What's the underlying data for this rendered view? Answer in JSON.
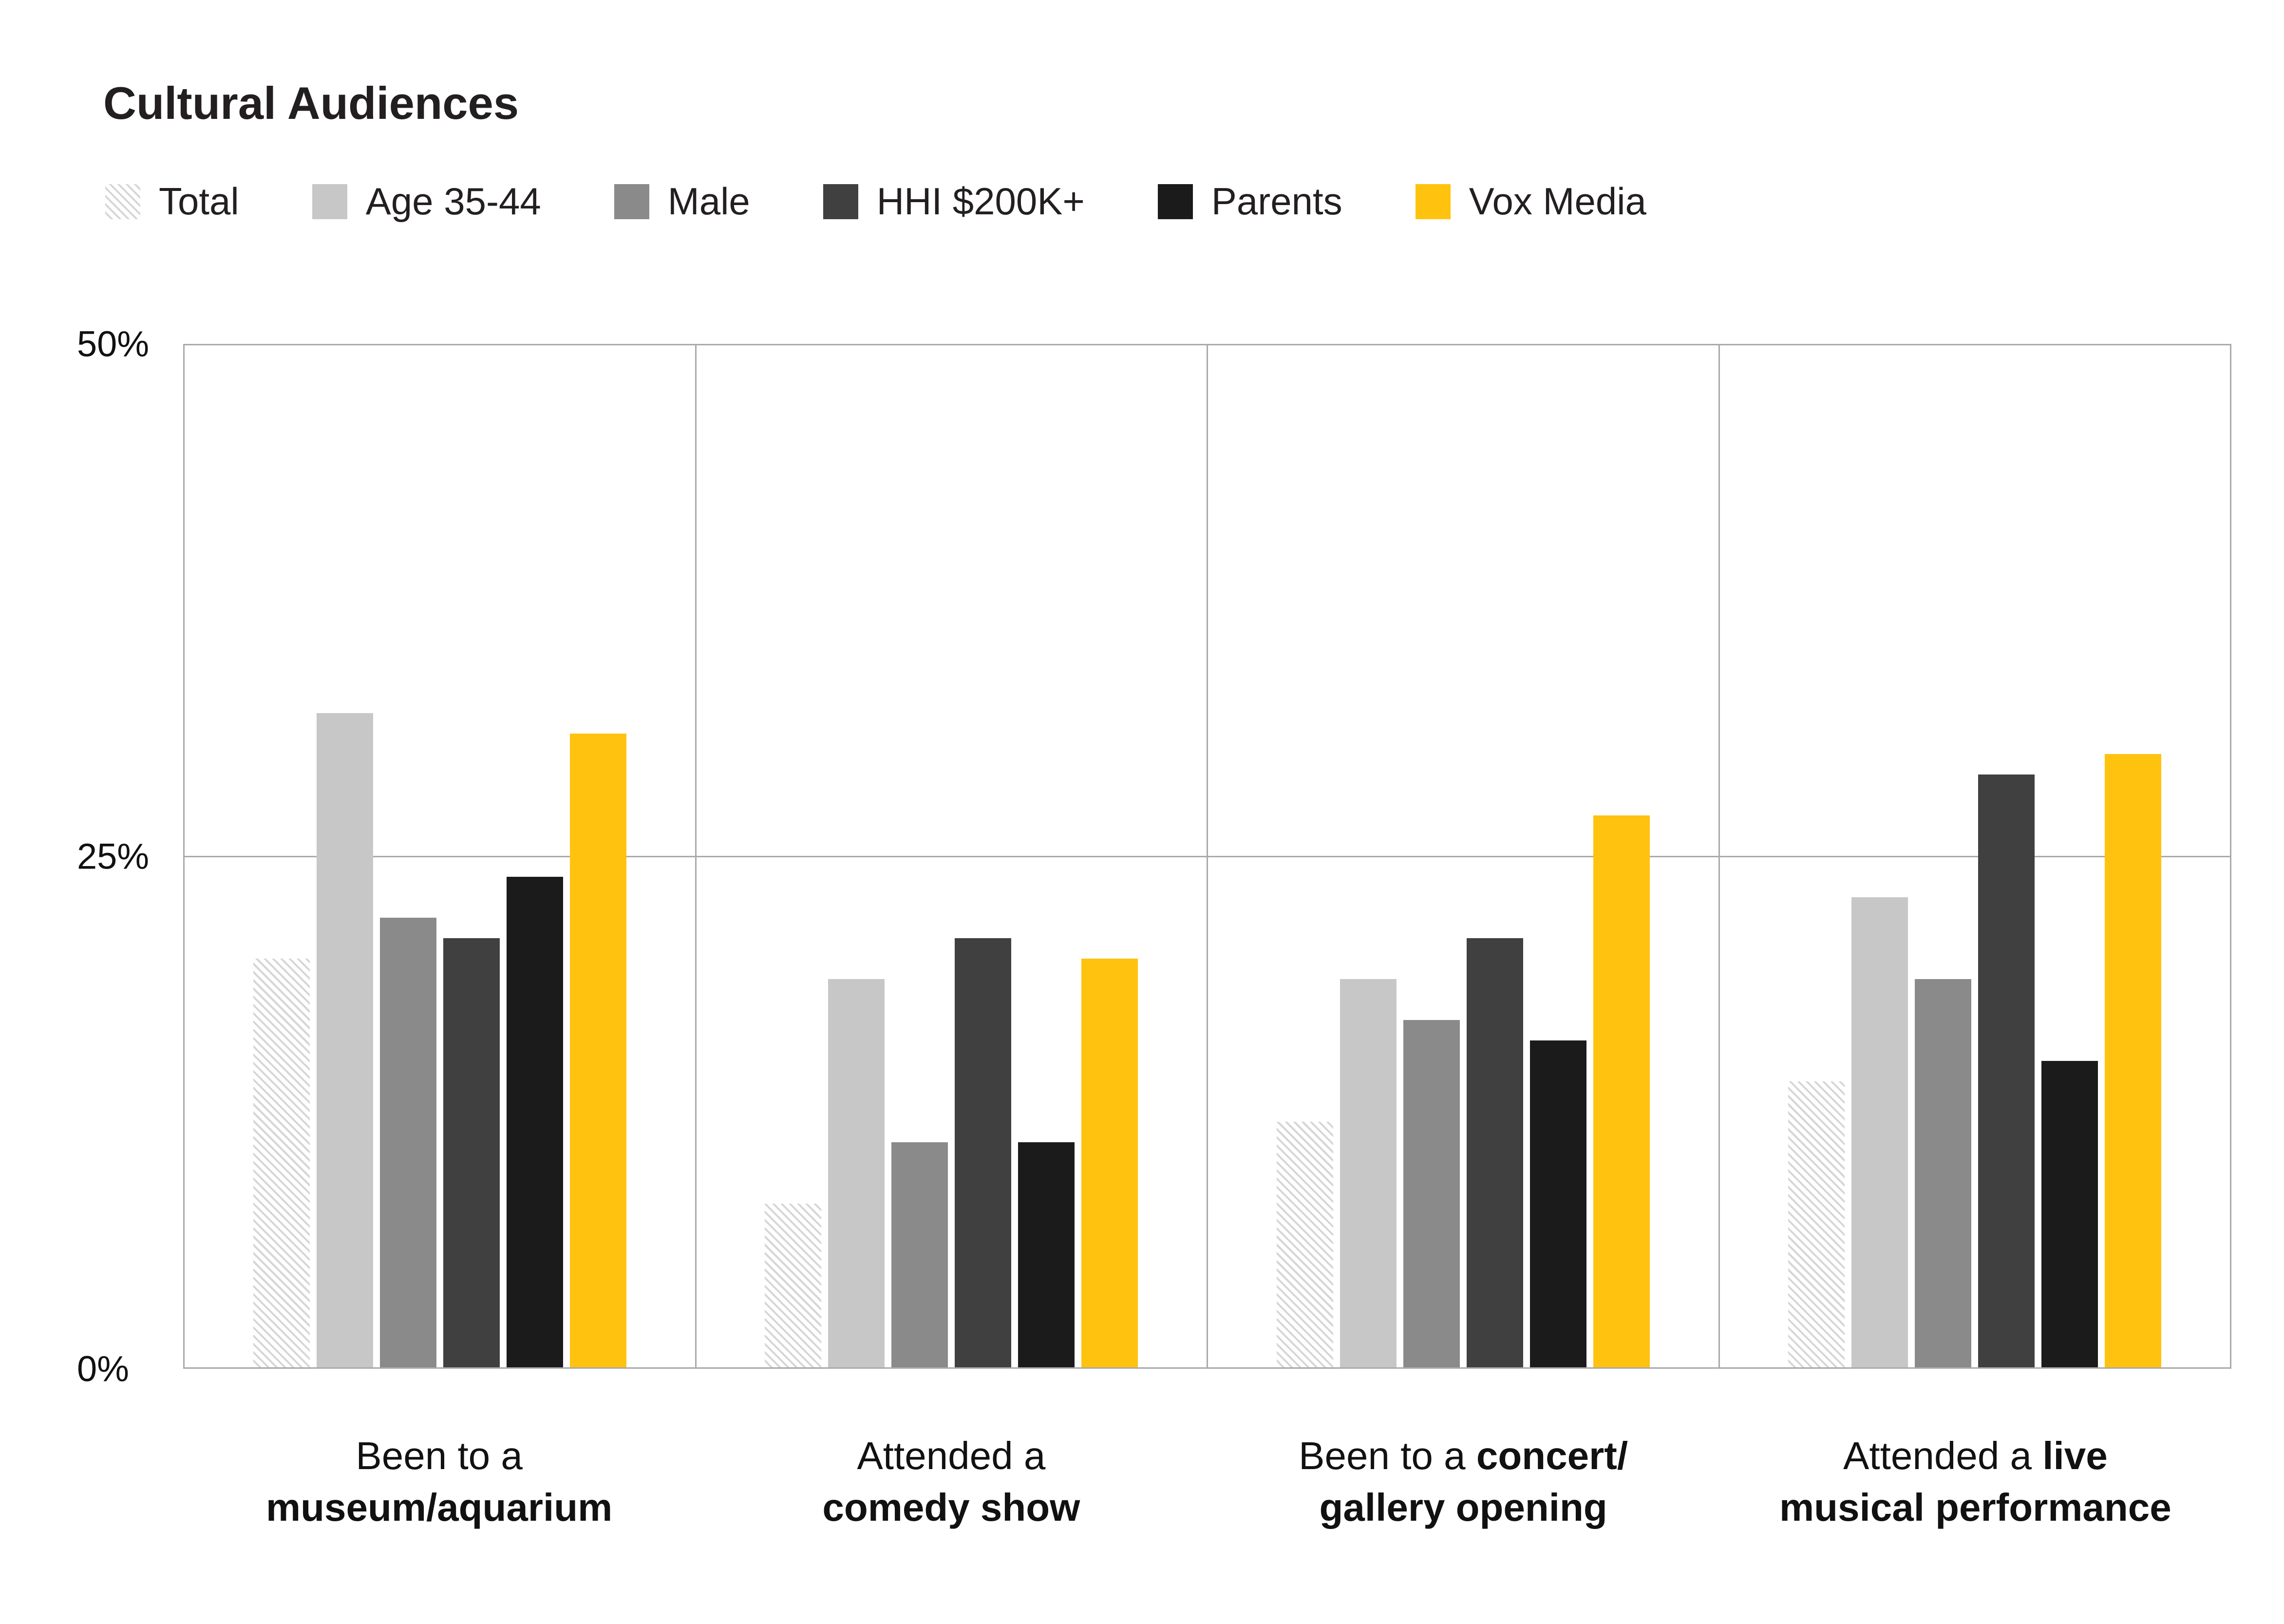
{
  "title": "Cultural Audiences",
  "legend": [
    {
      "label": "Total",
      "swatch": "hatch"
    },
    {
      "label": "Age 35-44",
      "swatch": "#c7c7c7"
    },
    {
      "label": "Male",
      "swatch": "#8a8a8a"
    },
    {
      "label": "HHI $200K+",
      "swatch": "#404040"
    },
    {
      "label": "Parents",
      "swatch": "#1b1b1b"
    },
    {
      "label": "Vox Media",
      "swatch": "#ffc20e"
    }
  ],
  "chart_data": {
    "type": "bar",
    "title": "Cultural Audiences",
    "xlabel": "",
    "ylabel": "",
    "ylim": [
      0,
      50
    ],
    "grid": "horizontal gridline at 25% only",
    "legend_position": "top",
    "yticks": [
      {
        "label": "50%",
        "value": 50
      },
      {
        "label": "25%",
        "value": 25
      },
      {
        "label": "0%",
        "value": 0
      }
    ],
    "categories": [
      {
        "name": "Been to a museum/aquarium",
        "lines": [
          [
            {
              "t": "Been to a",
              "b": false
            }
          ],
          [
            {
              "t": "museum/aquarium",
              "b": true
            }
          ]
        ]
      },
      {
        "name": "Attended a comedy show",
        "lines": [
          [
            {
              "t": "Attended a",
              "b": false
            }
          ],
          [
            {
              "t": "comedy show",
              "b": true
            }
          ]
        ]
      },
      {
        "name": "Been to a concert/gallery opening",
        "lines": [
          [
            {
              "t": "Been to a ",
              "b": false
            },
            {
              "t": "concert/",
              "b": true
            }
          ],
          [
            {
              "t": "gallery opening",
              "b": true
            }
          ]
        ]
      },
      {
        "name": "Attended a live musical performance",
        "lines": [
          [
            {
              "t": "Attended a ",
              "b": false
            },
            {
              "t": "live",
              "b": true
            }
          ],
          [
            {
              "t": "musical performance",
              "b": true
            }
          ]
        ]
      }
    ],
    "series": [
      {
        "name": "Total",
        "style": "hatched",
        "color": "#d6d6d6",
        "values": [
          20,
          8,
          12,
          14
        ]
      },
      {
        "name": "Age 35-44",
        "style": "solid",
        "color": "#c7c7c7",
        "values": [
          32,
          19,
          19,
          23
        ]
      },
      {
        "name": "Male",
        "style": "solid",
        "color": "#8a8a8a",
        "values": [
          22,
          11,
          17,
          19
        ]
      },
      {
        "name": "HHI $200K+",
        "style": "solid",
        "color": "#404040",
        "values": [
          21,
          21,
          21,
          29
        ]
      },
      {
        "name": "Parents",
        "style": "solid",
        "color": "#1b1b1b",
        "values": [
          24,
          11,
          16,
          15
        ]
      },
      {
        "name": "Vox Media",
        "style": "solid",
        "color": "#ffc20e",
        "values": [
          31,
          20,
          27,
          30
        ]
      }
    ]
  }
}
